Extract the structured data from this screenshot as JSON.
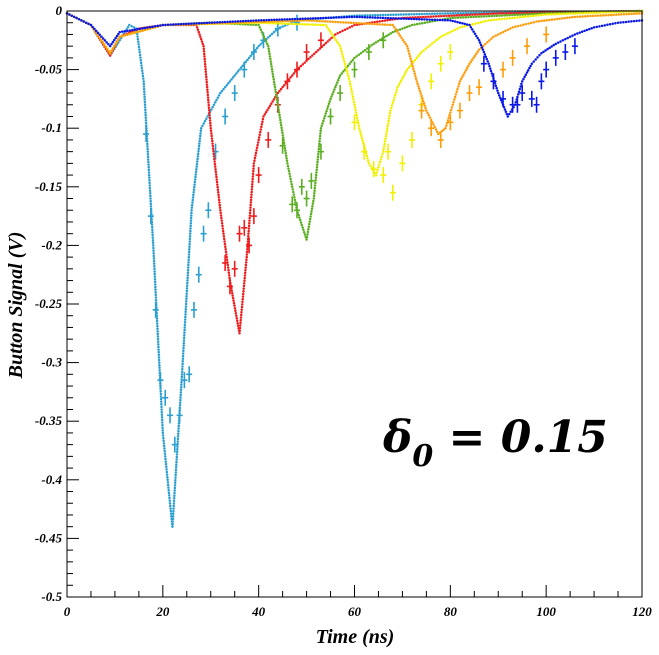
{
  "chart_data": {
    "type": "scatter",
    "title": "",
    "xlabel": "Time (ns)",
    "ylabel": "Button Signal (V)",
    "xlim": [
      0,
      120
    ],
    "ylim": [
      -0.5,
      0
    ],
    "xticks": [
      0,
      20,
      40,
      60,
      80,
      100,
      120
    ],
    "xtick_labels": [
      "0",
      "20",
      "40",
      "60",
      "80",
      "100",
      "120"
    ],
    "yticks": [
      0,
      -0.05,
      -0.1,
      -0.15,
      -0.2,
      -0.25,
      -0.3,
      -0.35,
      -0.4,
      -0.45,
      -0.5
    ],
    "ytick_labels": [
      "0",
      "-0.05",
      "-0.1",
      "-0.15",
      "-0.2",
      "-0.25",
      "-0.3",
      "-0.35",
      "-0.4",
      "-0.45",
      "-0.5"
    ],
    "grid": false,
    "legend": "none",
    "annotation": {
      "greek": "δ",
      "subscript": "0",
      "rest": " = 0.15"
    },
    "series": [
      {
        "color": "#2a9fd0",
        "curve": [
          [
            0,
            -0.002
          ],
          [
            5,
            -0.012
          ],
          [
            9,
            -0.038
          ],
          [
            11,
            -0.025
          ],
          [
            13,
            -0.012
          ],
          [
            14.5,
            -0.015
          ],
          [
            16,
            -0.06
          ],
          [
            18,
            -0.2
          ],
          [
            20,
            -0.36
          ],
          [
            22,
            -0.44
          ],
          [
            24,
            -0.31
          ],
          [
            26,
            -0.17
          ],
          [
            28,
            -0.1
          ],
          [
            32,
            -0.07
          ],
          [
            36,
            -0.05
          ],
          [
            40,
            -0.03
          ],
          [
            44,
            -0.015
          ],
          [
            48,
            -0.008
          ],
          [
            60,
            -0.004
          ],
          [
            80,
            -0.002
          ],
          [
            120,
            0
          ]
        ],
        "points": [
          [
            16.5,
            -0.105
          ],
          [
            17.5,
            -0.175
          ],
          [
            18.5,
            -0.255
          ],
          [
            19.5,
            -0.315
          ],
          [
            20.5,
            -0.33
          ],
          [
            21.5,
            -0.345
          ],
          [
            22.5,
            -0.37
          ],
          [
            23.5,
            -0.345
          ],
          [
            24.5,
            -0.315
          ],
          [
            25.5,
            -0.31
          ],
          [
            26.5,
            -0.255
          ],
          [
            27.5,
            -0.225
          ],
          [
            28.5,
            -0.19
          ],
          [
            29.5,
            -0.17
          ],
          [
            31,
            -0.12
          ],
          [
            33,
            -0.09
          ],
          [
            35,
            -0.07
          ],
          [
            37,
            -0.05
          ],
          [
            39,
            -0.035
          ],
          [
            41,
            -0.025
          ],
          [
            44,
            -0.015
          ],
          [
            48,
            -0.01
          ]
        ]
      },
      {
        "color": "#ee1c1c",
        "curve": [
          [
            0,
            -0.002
          ],
          [
            5,
            -0.012
          ],
          [
            9,
            -0.038
          ],
          [
            11,
            -0.022
          ],
          [
            15,
            -0.015
          ],
          [
            20,
            -0.012
          ],
          [
            27,
            -0.012
          ],
          [
            28.5,
            -0.03
          ],
          [
            30,
            -0.1
          ],
          [
            32,
            -0.17
          ],
          [
            34,
            -0.23
          ],
          [
            36,
            -0.275
          ],
          [
            37.5,
            -0.21
          ],
          [
            39,
            -0.13
          ],
          [
            41,
            -0.09
          ],
          [
            44,
            -0.07
          ],
          [
            48,
            -0.05
          ],
          [
            52,
            -0.035
          ],
          [
            56,
            -0.02
          ],
          [
            60,
            -0.012
          ],
          [
            70,
            -0.006
          ],
          [
            90,
            -0.002
          ],
          [
            120,
            0
          ]
        ],
        "points": [
          [
            33,
            -0.215
          ],
          [
            34,
            -0.235
          ],
          [
            35,
            -0.22
          ],
          [
            36,
            -0.19
          ],
          [
            37,
            -0.185
          ],
          [
            38,
            -0.2
          ],
          [
            39,
            -0.175
          ],
          [
            40,
            -0.14
          ],
          [
            42,
            -0.11
          ],
          [
            44,
            -0.08
          ],
          [
            46,
            -0.06
          ],
          [
            48,
            -0.05
          ],
          [
            50,
            -0.035
          ],
          [
            53,
            -0.025
          ]
        ]
      },
      {
        "color": "#5aae20",
        "curve": [
          [
            0,
            -0.002
          ],
          [
            5,
            -0.012
          ],
          [
            9,
            -0.036
          ],
          [
            11,
            -0.022
          ],
          [
            20,
            -0.012
          ],
          [
            30,
            -0.01
          ],
          [
            40,
            -0.012
          ],
          [
            42,
            -0.03
          ],
          [
            44,
            -0.08
          ],
          [
            46,
            -0.13
          ],
          [
            48,
            -0.17
          ],
          [
            50,
            -0.195
          ],
          [
            51.5,
            -0.16
          ],
          [
            53,
            -0.1
          ],
          [
            55,
            -0.075
          ],
          [
            57,
            -0.055
          ],
          [
            60,
            -0.04
          ],
          [
            64,
            -0.028
          ],
          [
            68,
            -0.018
          ],
          [
            72,
            -0.012
          ],
          [
            80,
            -0.006
          ],
          [
            100,
            -0.002
          ],
          [
            120,
            0
          ]
        ],
        "points": [
          [
            45,
            -0.115
          ],
          [
            47,
            -0.165
          ],
          [
            48,
            -0.17
          ],
          [
            49,
            -0.15
          ],
          [
            50,
            -0.16
          ],
          [
            51,
            -0.145
          ],
          [
            53,
            -0.12
          ],
          [
            55,
            -0.09
          ],
          [
            57,
            -0.07
          ],
          [
            60,
            -0.05
          ],
          [
            63,
            -0.035
          ],
          [
            66,
            -0.025
          ]
        ]
      },
      {
        "color": "#f0f000",
        "curve": [
          [
            0,
            -0.002
          ],
          [
            5,
            -0.012
          ],
          [
            9,
            -0.036
          ],
          [
            11,
            -0.022
          ],
          [
            20,
            -0.012
          ],
          [
            40,
            -0.01
          ],
          [
            54,
            -0.012
          ],
          [
            57,
            -0.03
          ],
          [
            59,
            -0.06
          ],
          [
            61,
            -0.1
          ],
          [
            63,
            -0.13
          ],
          [
            64.5,
            -0.14
          ],
          [
            66,
            -0.12
          ],
          [
            67.5,
            -0.085
          ],
          [
            69,
            -0.065
          ],
          [
            71,
            -0.05
          ],
          [
            74,
            -0.035
          ],
          [
            78,
            -0.022
          ],
          [
            82,
            -0.014
          ],
          [
            88,
            -0.008
          ],
          [
            100,
            -0.003
          ],
          [
            120,
            0
          ]
        ],
        "points": [
          [
            60,
            -0.095
          ],
          [
            62,
            -0.12
          ],
          [
            64,
            -0.135
          ],
          [
            66,
            -0.14
          ],
          [
            67,
            -0.12
          ],
          [
            68,
            -0.155
          ],
          [
            70,
            -0.13
          ],
          [
            72,
            -0.11
          ],
          [
            74,
            -0.08
          ],
          [
            76,
            -0.06
          ],
          [
            78,
            -0.045
          ],
          [
            80,
            -0.035
          ]
        ]
      },
      {
        "color": "#ff9c0a",
        "curve": [
          [
            0,
            -0.002
          ],
          [
            5,
            -0.012
          ],
          [
            9,
            -0.036
          ],
          [
            11,
            -0.022
          ],
          [
            20,
            -0.012
          ],
          [
            50,
            -0.008
          ],
          [
            68,
            -0.012
          ],
          [
            71,
            -0.03
          ],
          [
            73,
            -0.06
          ],
          [
            75,
            -0.085
          ],
          [
            77.5,
            -0.105
          ],
          [
            79,
            -0.1
          ],
          [
            80.5,
            -0.08
          ],
          [
            82,
            -0.06
          ],
          [
            84,
            -0.045
          ],
          [
            86,
            -0.033
          ],
          [
            89,
            -0.022
          ],
          [
            93,
            -0.014
          ],
          [
            98,
            -0.009
          ],
          [
            106,
            -0.005
          ],
          [
            120,
            -0.002
          ]
        ],
        "points": [
          [
            74,
            -0.085
          ],
          [
            76,
            -0.1
          ],
          [
            78,
            -0.11
          ],
          [
            80,
            -0.095
          ],
          [
            82,
            -0.085
          ],
          [
            84,
            -0.07
          ],
          [
            86,
            -0.065
          ],
          [
            89,
            -0.06
          ],
          [
            91,
            -0.05
          ],
          [
            93,
            -0.04
          ],
          [
            96,
            -0.03
          ],
          [
            100,
            -0.02
          ]
        ]
      },
      {
        "color": "#0a18e6",
        "curve": [
          [
            0,
            -0.002
          ],
          [
            5,
            -0.012
          ],
          [
            9,
            -0.03
          ],
          [
            11,
            -0.018
          ],
          [
            20,
            -0.012
          ],
          [
            40,
            -0.008
          ],
          [
            60,
            -0.005
          ],
          [
            80,
            -0.008
          ],
          [
            84,
            -0.012
          ],
          [
            86,
            -0.025
          ],
          [
            88,
            -0.045
          ],
          [
            90,
            -0.07
          ],
          [
            92,
            -0.09
          ],
          [
            93.5,
            -0.08
          ],
          [
            95,
            -0.06
          ],
          [
            97,
            -0.045
          ],
          [
            99,
            -0.036
          ],
          [
            102,
            -0.028
          ],
          [
            106,
            -0.02
          ],
          [
            110,
            -0.014
          ],
          [
            115,
            -0.01
          ],
          [
            120,
            -0.008
          ]
        ],
        "points": [
          [
            87,
            -0.045
          ],
          [
            89,
            -0.06
          ],
          [
            91,
            -0.075
          ],
          [
            93,
            -0.08
          ],
          [
            94,
            -0.08
          ],
          [
            95,
            -0.07
          ],
          [
            97,
            -0.075
          ],
          [
            98,
            -0.08
          ],
          [
            99,
            -0.06
          ],
          [
            100,
            -0.05
          ],
          [
            102,
            -0.04
          ],
          [
            104,
            -0.035
          ],
          [
            106,
            -0.03
          ]
        ]
      }
    ]
  }
}
